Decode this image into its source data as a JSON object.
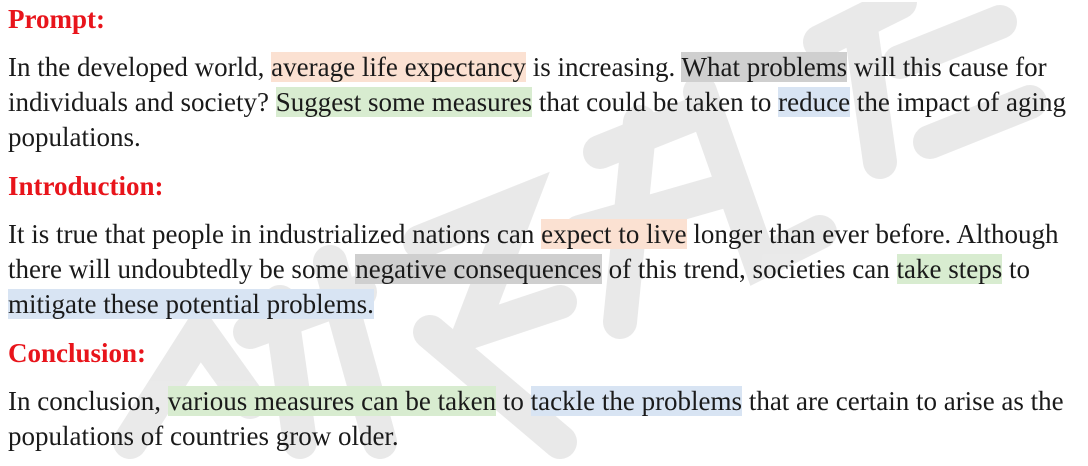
{
  "colors": {
    "heading": "#e8141b",
    "highlight_orange": "#fbe1d2",
    "highlight_gray": "#cfcfcf",
    "highlight_green": "#d8ecd0",
    "highlight_blue": "#d8e4f3"
  },
  "sections": {
    "prompt": {
      "heading": "Prompt:",
      "s0": "In the developed world, ",
      "s1": "average life expectancy",
      "s2": " is increasing. ",
      "s3": "What problems",
      "s4": " will this cause for individuals and society? ",
      "s5": "Suggest some measures",
      "s6": " that could be taken to ",
      "s7": "reduce",
      "s8": " the impact of aging populations."
    },
    "introduction": {
      "heading": "Introduction:",
      "s0": "It is true that people in industrialized nations can ",
      "s1": "expect to live",
      "s2": " longer than ever before. Although there will undoubtedly be some ",
      "s3": "negative consequences",
      "s4": " of this trend, societies can ",
      "s5": "take steps",
      "s6": " to ",
      "s7": "mitigate these potential problems.",
      "s8": ""
    },
    "conclusion": {
      "heading": "Conclusion:",
      "s0": "In conclusion, ",
      "s1": "various measures can be taken",
      "s2": " to ",
      "s3": "tackle the problems",
      "s4": " that are certain to arise as the populations of countries grow older."
    }
  }
}
